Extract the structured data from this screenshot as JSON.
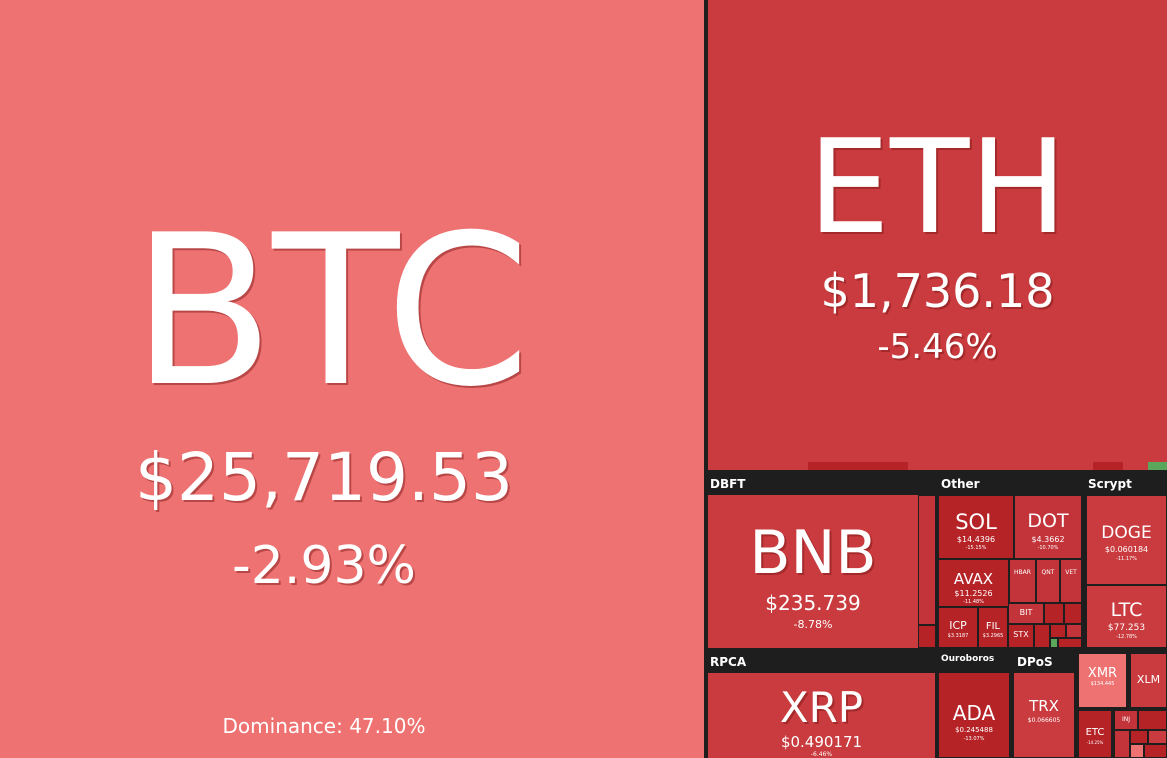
{
  "chart_data": {
    "type": "heatmap",
    "groups": [
      {
        "name": "DBFT"
      },
      {
        "name": "Other"
      },
      {
        "name": "Scrypt"
      },
      {
        "name": "RPCA"
      },
      {
        "name": "Ouroboros"
      },
      {
        "name": "DPoS"
      }
    ],
    "tiles": {
      "btc": {
        "symbol": "BTC",
        "price": "$25,719.53",
        "change": "-2.93%",
        "dominance": "Dominance: 47.10%",
        "color": "#ee7272"
      },
      "eth": {
        "symbol": "ETH",
        "price": "$1,736.18",
        "change": "-5.46%",
        "color": "#c93b3e"
      },
      "bnb": {
        "symbol": "BNB",
        "price": "$235.739",
        "change": "-8.78%",
        "color": "#c93b3e"
      },
      "sol": {
        "symbol": "SOL",
        "price": "$14.4396",
        "change": "-15.15%",
        "color": "#b52327"
      },
      "dot": {
        "symbol": "DOT",
        "price": "$4.3662",
        "change": "-10.70%",
        "color": "#c2343a"
      },
      "avax": {
        "symbol": "AVAX",
        "price": "$11.2526",
        "change": "-11.48%",
        "color": "#b52327"
      },
      "icp": {
        "symbol": "ICP",
        "price": "$3.3187",
        "color": "#b52327"
      },
      "fil": {
        "symbol": "FIL",
        "price": "$3.2965",
        "color": "#b52327"
      },
      "hbar": {
        "symbol": "HBAR",
        "color": "#c2343a"
      },
      "qnt": {
        "symbol": "QNT",
        "color": "#c2343a"
      },
      "vet": {
        "symbol": "VET",
        "color": "#c2343a"
      },
      "bit": {
        "symbol": "BIT",
        "color": "#c2343a"
      },
      "stx": {
        "symbol": "STX",
        "color": "#b52327"
      },
      "doge": {
        "symbol": "DOGE",
        "price": "$0.060184",
        "change": "-11.17%",
        "color": "#c93b3e"
      },
      "ltc": {
        "symbol": "LTC",
        "price": "$77.253",
        "change": "-12.78%",
        "color": "#c93b3e"
      },
      "xrp": {
        "symbol": "XRP",
        "price": "$0.490171",
        "change": "-6.46%",
        "color": "#c93b3e"
      },
      "ada": {
        "symbol": "ADA",
        "price": "$0.245488",
        "change": "-13.07%",
        "color": "#b52327"
      },
      "trx": {
        "symbol": "TRX",
        "price": "$0.066605",
        "color": "#c93b3e"
      },
      "xmr": {
        "symbol": "XMR",
        "price": "$134.445",
        "color": "#ee7272"
      },
      "xlm": {
        "symbol": "XLM",
        "color": "#c93b3e"
      },
      "etc": {
        "symbol": "ETC",
        "change": "-14.25%",
        "color": "#b52327"
      },
      "ins": {
        "symbol": "INJ",
        "color": "#c2343a"
      }
    }
  }
}
